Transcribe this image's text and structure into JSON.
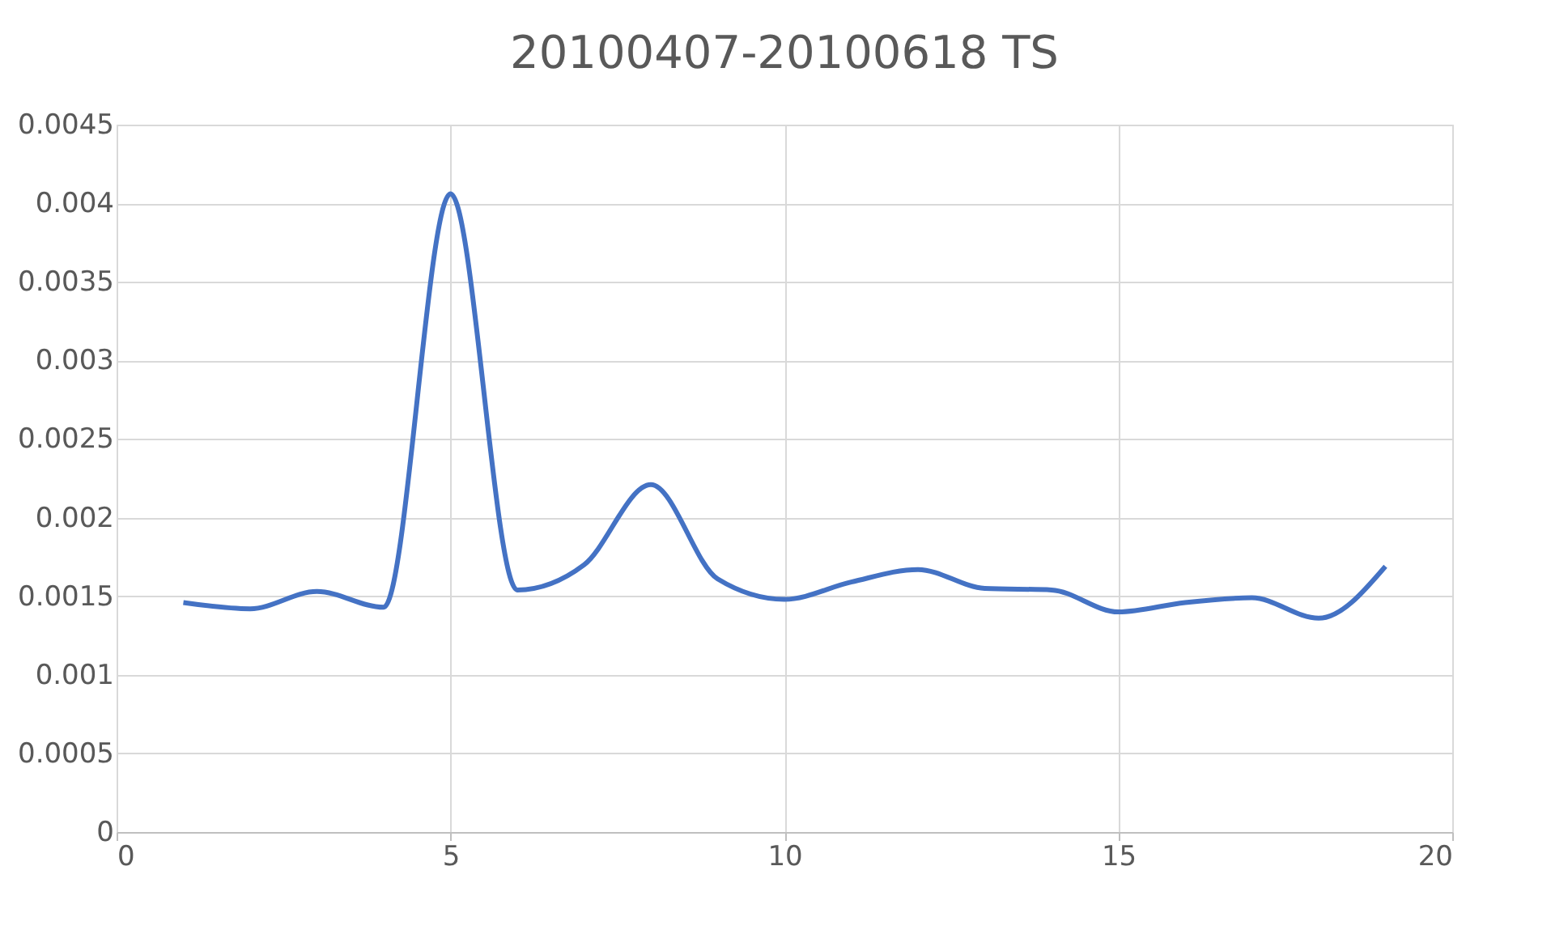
{
  "chart_data": {
    "type": "line",
    "title": "20100407-20100618 TS",
    "x": [
      1,
      2,
      3,
      4,
      5,
      6,
      7,
      8,
      9,
      10,
      11,
      12,
      13,
      14,
      15,
      16,
      17,
      18,
      19
    ],
    "series": [
      {
        "color": "#4472c4",
        "values": [
          0.00146,
          0.00142,
          0.00153,
          0.00143,
          0.00406,
          0.00154,
          0.0017,
          0.00221,
          0.00161,
          0.00148,
          0.00159,
          0.00167,
          0.00155,
          0.00154,
          0.0014,
          0.00146,
          0.00149,
          0.00136,
          0.00169
        ]
      }
    ],
    "xlim": [
      0,
      20
    ],
    "xticks": [
      0,
      5,
      10,
      15,
      20
    ],
    "ylim": [
      0,
      0.0045
    ],
    "yticks": [
      0,
      0.0005,
      0.001,
      0.0015,
      0.002,
      0.0025,
      0.003,
      0.0035,
      0.004,
      0.0045
    ],
    "grid": true,
    "marker": "none",
    "line_style": "solid"
  }
}
